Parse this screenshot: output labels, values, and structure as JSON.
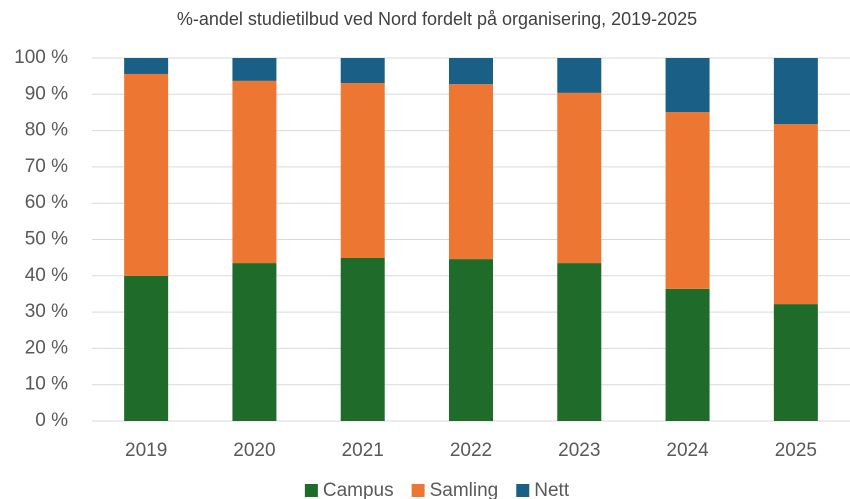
{
  "chart_data": {
    "type": "stacked_bar",
    "title": "%-andel studietilbud ved Nord fordelt på organisering, 2019-2025",
    "categories": [
      "2019",
      "2020",
      "2021",
      "2022",
      "2023",
      "2024",
      "2025"
    ],
    "series": [
      {
        "name": "Campus",
        "color": "#1e6b2a",
        "values": [
          40,
          43.5,
          44.9,
          44.6,
          43.5,
          36.4,
          32.2
        ]
      },
      {
        "name": "Samling",
        "color": "#ed7732",
        "values": [
          55.6,
          50.2,
          48.2,
          48.2,
          46.9,
          48.7,
          49.6
        ]
      },
      {
        "name": "Nett",
        "color": "#1a5f85",
        "values": [
          4.4,
          6.3,
          6.9,
          7.2,
          9.6,
          14.9,
          18.2
        ]
      }
    ],
    "ylim": [
      0,
      100
    ],
    "yticks": [
      {
        "value": 0,
        "label": "0 %"
      },
      {
        "value": 10,
        "label": "10 %"
      },
      {
        "value": 20,
        "label": "20 %"
      },
      {
        "value": 30,
        "label": "30 %"
      },
      {
        "value": 40,
        "label": "40 %"
      },
      {
        "value": 50,
        "label": "50 %"
      },
      {
        "value": 60,
        "label": "60 %"
      },
      {
        "value": 70,
        "label": "70 %"
      },
      {
        "value": 80,
        "label": "80 %"
      },
      {
        "value": 90,
        "label": "90 %"
      },
      {
        "value": 100,
        "label": "100 %"
      }
    ],
    "grid": true,
    "legend": "bottom"
  }
}
